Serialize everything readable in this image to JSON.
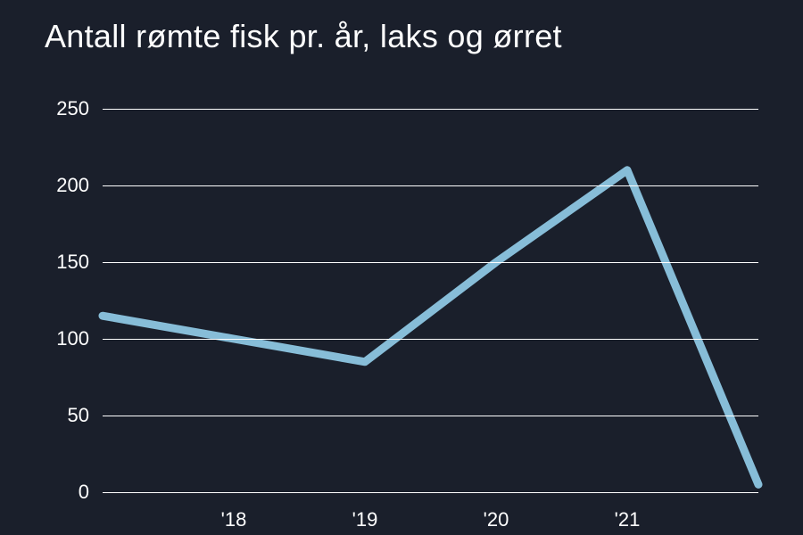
{
  "chart": {
    "type": "line",
    "title": "Antall rømte fisk pr. år, laks og ørret",
    "background_color": "#1a1f2b",
    "title_color": "#ffffff",
    "title_fontsize": 36,
    "axis_label_color": "#ffffff",
    "axis_label_fontsize": 22,
    "grid_color": "#ffffff",
    "grid_width": 1,
    "line_color": "#87bdd8",
    "line_width": 9,
    "ylim": [
      0,
      250
    ],
    "ytick_step": 50,
    "yticks": [
      0,
      50,
      100,
      150,
      200,
      250
    ],
    "x_labels": [
      "'18",
      "'19",
      "'20",
      "'21"
    ],
    "x_label_positions_pct": [
      20,
      40,
      60,
      80
    ],
    "series": {
      "x_pct": [
        0,
        20,
        40,
        60,
        80,
        100
      ],
      "y_values": [
        115,
        100,
        85,
        150,
        210,
        5
      ]
    }
  }
}
